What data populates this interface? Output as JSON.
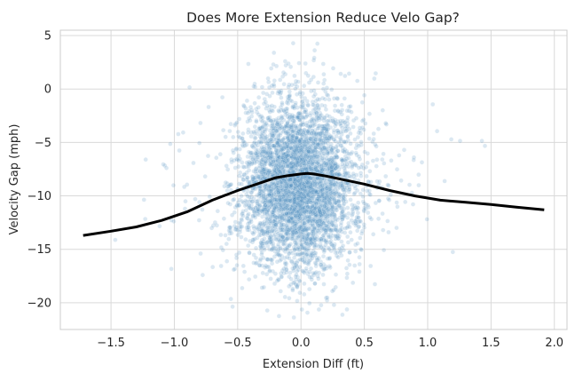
{
  "chart_data": {
    "type": "scatter",
    "title": "Does More Extension Reduce Velo Gap?",
    "xlabel": "Extension Diff (ft)",
    "ylabel": "Velocity Gap (mph)",
    "xlim": [
      -1.9,
      2.1
    ],
    "ylim": [
      -22.5,
      5.5
    ],
    "x_ticks": [
      -1.5,
      -1.0,
      -0.5,
      0.0,
      0.5,
      1.0,
      1.5,
      2.0
    ],
    "x_tick_labels": [
      "−1.5",
      "−1.0",
      "−0.5",
      "0.0",
      "0.5",
      "1.0",
      "1.5",
      "2.0"
    ],
    "y_ticks": [
      5,
      0,
      -5,
      -10,
      -15,
      -20
    ],
    "y_tick_labels": [
      "5",
      "0",
      "−5",
      "−10",
      "−15",
      "−20"
    ],
    "grid": true,
    "legend": "none",
    "colors": {
      "points": "#4a8cc0",
      "trend": "#000000",
      "grid": "#d9d9d9"
    },
    "scatter_distribution": {
      "count": 4500,
      "x_center": -0.02,
      "x_spread": 0.22,
      "y_center": -9.0,
      "y_spread": 4.0
    },
    "trend_line": {
      "x": [
        -1.72,
        -1.5,
        -1.3,
        -1.1,
        -0.9,
        -0.7,
        -0.5,
        -0.3,
        -0.2,
        -0.1,
        0.0,
        0.05,
        0.1,
        0.2,
        0.3,
        0.5,
        0.7,
        0.9,
        1.1,
        1.3,
        1.5,
        1.7,
        1.92
      ],
      "y": [
        -13.7,
        -13.3,
        -12.9,
        -12.3,
        -11.5,
        -10.4,
        -9.5,
        -8.7,
        -8.3,
        -8.1,
        -7.95,
        -7.9,
        -7.95,
        -8.15,
        -8.4,
        -8.9,
        -9.5,
        -10.0,
        -10.4,
        -10.6,
        -10.8,
        -11.05,
        -11.3
      ]
    }
  }
}
